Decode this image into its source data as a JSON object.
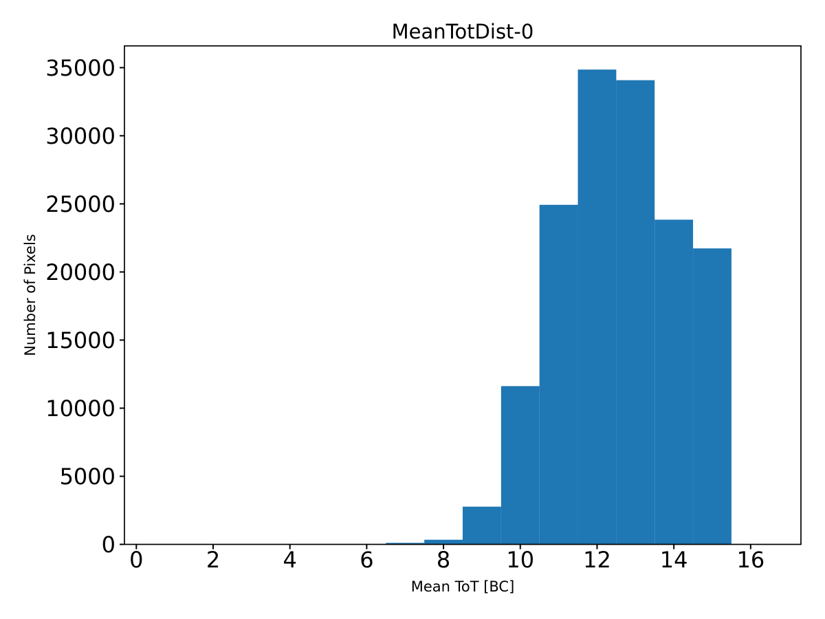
{
  "figure": {
    "background_color": "#ffffff"
  },
  "chart_data": {
    "type": "bar",
    "subtype": "histogram",
    "title": "MeanTotDist-0",
    "xlabel": "Mean ToT [BC]",
    "ylabel": "Number of Pixels",
    "bin_edges": [
      6.5,
      7.5,
      8.5,
      9.5,
      10.5,
      11.5,
      12.5,
      13.5,
      14.5,
      15.5
    ],
    "counts": [
      110,
      340,
      2770,
      11620,
      24930,
      34860,
      34080,
      23840,
      21730
    ],
    "xticks": [
      0,
      2,
      4,
      6,
      8,
      10,
      12,
      14,
      16
    ],
    "yticks": [
      0,
      5000,
      10000,
      15000,
      20000,
      25000,
      30000,
      35000
    ],
    "xlim": [
      -0.31,
      17.31
    ],
    "ylim": [
      0,
      36600
    ],
    "bar_color": "#1f77b4",
    "axis_color": "#000000",
    "grid": false,
    "legend_position": "none"
  }
}
